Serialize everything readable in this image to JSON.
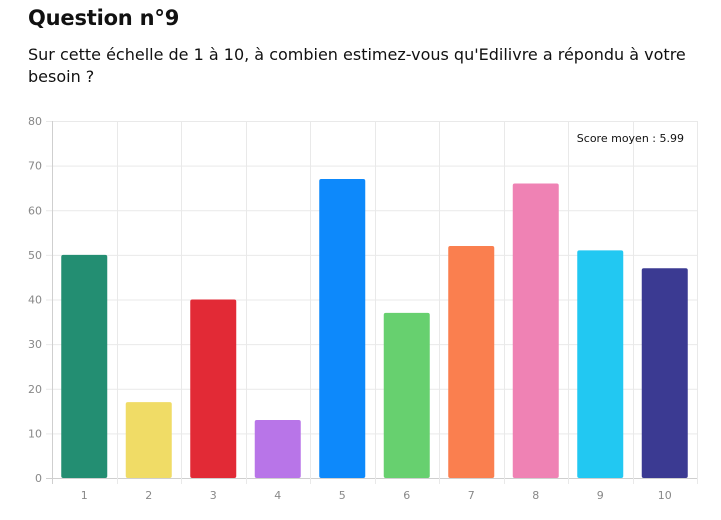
{
  "header": {
    "title": "Question n°9",
    "question": "Sur cette échelle de 1 à 10, à combien estimez-vous qu'Edilivre a répondu à votre besoin ?"
  },
  "chart_data": {
    "type": "bar",
    "categories": [
      "1",
      "2",
      "3",
      "4",
      "5",
      "6",
      "7",
      "8",
      "9",
      "10"
    ],
    "values": [
      50,
      17,
      40,
      13,
      67,
      37,
      52,
      66,
      51,
      47
    ],
    "colors": [
      "#238e72",
      "#f0dc66",
      "#e22a36",
      "#b875e8",
      "#0d89fb",
      "#67d06f",
      "#fa7f4f",
      "#ef82b4",
      "#22c8f2",
      "#3b3a92"
    ],
    "ylim": [
      0,
      80
    ],
    "yticks": [
      0,
      10,
      20,
      30,
      40,
      50,
      60,
      70,
      80
    ],
    "grid": true,
    "legend": "none",
    "annotation": "Score moyen : 5.99",
    "annotation_position": "top-right"
  }
}
